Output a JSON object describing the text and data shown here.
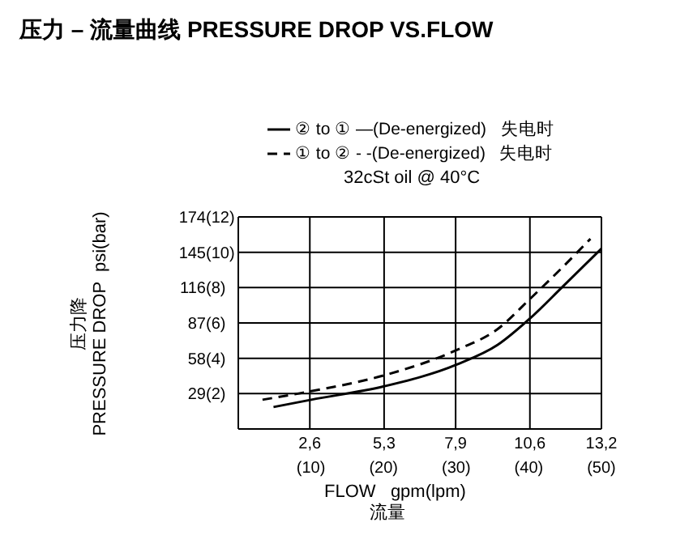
{
  "chart_data": {
    "type": "line",
    "title": "压力 – 流量曲线 PRESSURE DROP VS.FLOW",
    "xlabel": "FLOW   gpm(lpm)\n流量",
    "ylabel": "压力降\nPRESSURE DROP  psi(bar)",
    "annotations": [
      "32cSt oil @ 40°C"
    ],
    "series": [
      {
        "name": "② to ① —(De-energized)   失电时",
        "color": "#000000",
        "line_style": "solid",
        "x": [
          1.28,
          2.65,
          5.3,
          7.96,
          9.43,
          10.57,
          11.8,
          13.2
        ],
        "values": [
          18,
          24,
          35,
          53,
          69,
          90,
          117,
          148
        ]
      },
      {
        "name": "① to ② - -(De-energized)   失电时",
        "color": "#000000",
        "line_style": "dashed",
        "x": [
          0.88,
          2.65,
          5.3,
          7.96,
          9.43,
          10.57,
          11.8,
          12.8
        ],
        "values": [
          24,
          31,
          44,
          65,
          82,
          106,
          133,
          156
        ]
      }
    ],
    "xlim": [
      0,
      13.2
    ],
    "xticks": [
      {
        "value": 2.6,
        "label": "2,6"
      },
      {
        "value": 5.3,
        "label": "5,3"
      },
      {
        "value": 7.9,
        "label": "7,9"
      },
      {
        "value": 10.6,
        "label": "10,6"
      },
      {
        "value": 13.2,
        "label": "13,2"
      }
    ],
    "x2lim": [
      0,
      50
    ],
    "x2ticks": [
      {
        "value": 10,
        "label": "(10)"
      },
      {
        "value": 20,
        "label": "(20)"
      },
      {
        "value": 30,
        "label": "(30)"
      },
      {
        "value": 40,
        "label": "(40)"
      },
      {
        "value": 50,
        "label": "(50)"
      }
    ],
    "ylim": [
      0,
      174
    ],
    "yticks": [
      29,
      58,
      87,
      116,
      145,
      174
    ],
    "y2lim": [
      0,
      12
    ],
    "y2ticks": [
      {
        "value": 2,
        "label": "(2)"
      },
      {
        "value": 4,
        "label": "(4)"
      },
      {
        "value": 6,
        "label": "(6)"
      },
      {
        "value": 8,
        "label": "(8)"
      },
      {
        "value": 10,
        "label": "(10)"
      },
      {
        "value": 12,
        "label": "(12)"
      }
    ],
    "grid": true,
    "legend": "top",
    "marker": "none"
  }
}
